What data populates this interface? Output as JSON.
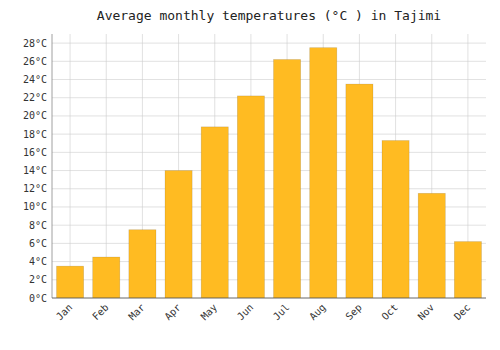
{
  "chart_data": {
    "type": "bar",
    "title": "Average monthly temperatures (°C ) in Tajimi",
    "categories": [
      "Jan",
      "Feb",
      "Mar",
      "Apr",
      "May",
      "Jun",
      "Jul",
      "Aug",
      "Sep",
      "Oct",
      "Nov",
      "Dec"
    ],
    "values": [
      3.5,
      4.5,
      7.5,
      14.0,
      18.8,
      22.2,
      26.2,
      27.5,
      23.5,
      17.3,
      11.5,
      6.2
    ],
    "color": "#FFBB22",
    "ylim": [
      0,
      29
    ],
    "yticks": [
      {
        "value": 0,
        "label": "0°C"
      },
      {
        "value": 2,
        "label": "2°C"
      },
      {
        "value": 4,
        "label": "4°C"
      },
      {
        "value": 6,
        "label": "6°C"
      },
      {
        "value": 8,
        "label": "8°C"
      },
      {
        "value": 10,
        "label": "10°C"
      },
      {
        "value": 12,
        "label": "12°C"
      },
      {
        "value": 14,
        "label": "14°C"
      },
      {
        "value": 16,
        "label": "16°C"
      },
      {
        "value": 18,
        "label": "18°C"
      },
      {
        "value": 20,
        "label": "20°C"
      },
      {
        "value": 22,
        "label": "22°C"
      },
      {
        "value": 24,
        "label": "24°C"
      },
      {
        "value": 26,
        "label": "26°C"
      },
      {
        "value": 28,
        "label": "28°C"
      }
    ],
    "grid": true
  }
}
